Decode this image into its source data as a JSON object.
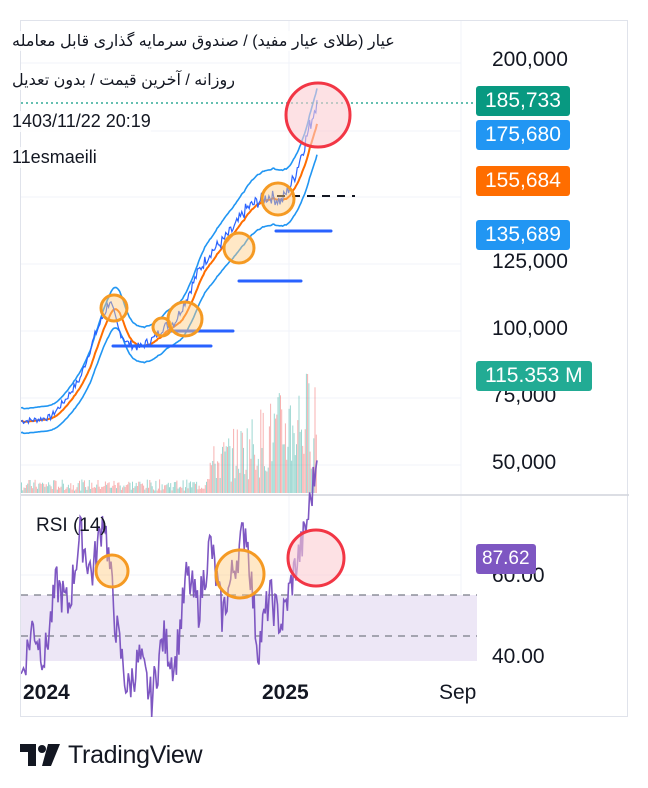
{
  "header": {
    "title": "عیار (طلای عیار مفید) / صندوق سرمایه گذاری قابل معامله",
    "subtitle": "روزانه / آخرین قیمت / بدون تعدیل",
    "datetime": "1403/11/22 20:19",
    "author": "11esmaeili"
  },
  "footer": {
    "brand": "TradingView"
  },
  "colors": {
    "price_line": "#2962ff",
    "band": "#2196f3",
    "ma": "#ff6d00",
    "rsi": "#7e57c2",
    "rsi_fill": "#ede7f6",
    "last_price": "#089981",
    "volume": "#26a69a",
    "highlight": "#f57c00",
    "alert": "#f23645"
  },
  "price_labels": [
    {
      "value": "185,733",
      "color": "#089981"
    },
    {
      "value": "175,680",
      "color": "#2196f3"
    },
    {
      "value": "155,684",
      "color": "#ff6d00"
    },
    {
      "value": "135,689",
      "color": "#2196f3"
    },
    {
      "value": "115.353 M",
      "color": "#22ab94"
    }
  ],
  "rsi_panel": {
    "label": "RSI (14)",
    "value": "87.62",
    "value_color": "#7e57c2"
  },
  "chart_data": {
    "type": "line",
    "price_axis": {
      "ticks": [
        "200,000",
        "125,000",
        "100,000",
        "75,000",
        "50,000"
      ]
    },
    "rsi_axis": {
      "ticks": [
        "60.00",
        "40.00"
      ],
      "overbought": 70,
      "oversold": 30
    },
    "time_axis": {
      "labels": [
        "2024",
        "2025",
        "Sep"
      ]
    },
    "price_series": {
      "x": [
        0,
        5,
        10,
        15,
        20,
        25,
        30,
        33,
        36,
        40,
        45,
        48,
        52,
        56,
        60,
        64,
        68,
        72,
        76,
        80,
        84,
        88,
        92,
        96,
        100
      ],
      "values": [
        66000,
        66500,
        67500,
        74000,
        82000,
        98000,
        111000,
        100000,
        95000,
        93500,
        97000,
        101000,
        103000,
        112000,
        122000,
        129000,
        133000,
        138000,
        145000,
        148000,
        150000,
        148000,
        156000,
        170000,
        185733
      ]
    },
    "rsi_series": {
      "x": [
        0,
        4,
        8,
        12,
        16,
        20,
        24,
        28,
        32,
        36,
        40,
        44,
        48,
        52,
        56,
        60,
        64,
        68,
        72,
        76,
        80,
        84,
        88,
        92,
        96,
        100
      ],
      "values": [
        35,
        48,
        40,
        58,
        52,
        70,
        60,
        75,
        48,
        32,
        40,
        30,
        45,
        38,
        60,
        52,
        68,
        50,
        62,
        72,
        42,
        55,
        48,
        60,
        70,
        87.62
      ]
    }
  }
}
